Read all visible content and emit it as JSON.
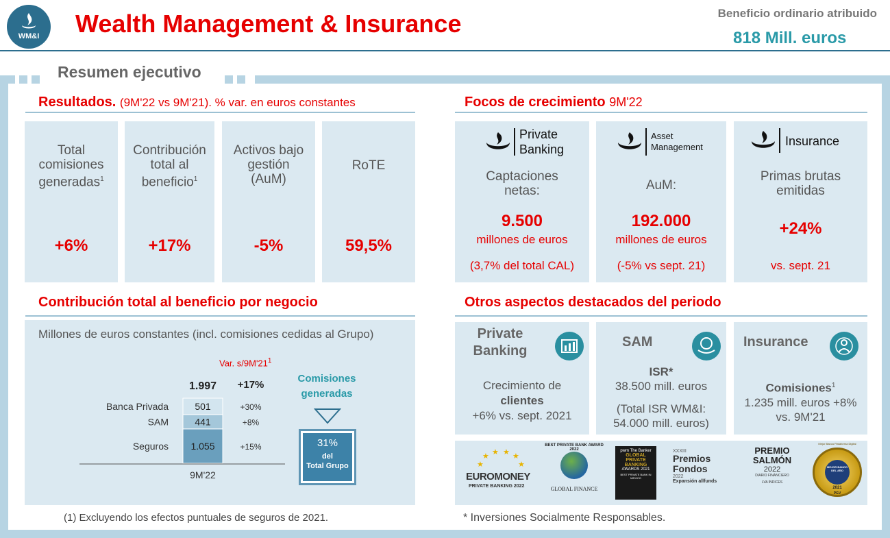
{
  "header": {
    "logo_text": "WM&I",
    "title": "Wealth Management & Insurance",
    "kpi_label": "Beneficio ordinario atribuido",
    "kpi_value": "818 Mill. euros"
  },
  "section_tab": "Resumen ejecutivo",
  "resultados": {
    "title": "Resultados.",
    "subtitle": "(9M'22 vs 9M'21). % var. en euros constantes",
    "metrics": [
      {
        "label_lines": [
          "Total",
          "comisiones",
          "generadas"
        ],
        "sup": "1",
        "value": "+6%"
      },
      {
        "label_lines": [
          "Contribución",
          "total al",
          "beneficio"
        ],
        "sup": "1",
        "value": "+17%"
      },
      {
        "label_lines": [
          "Activos bajo",
          "gestión",
          "(AuM)"
        ],
        "sup": "",
        "value": "-5%"
      },
      {
        "label_lines": [
          "RoTE"
        ],
        "sup": "",
        "value": "59,5%"
      }
    ]
  },
  "focos": {
    "title": "Focos de crecimiento",
    "period": "9M'22",
    "cards": [
      {
        "brand_lines": [
          "Private",
          "Banking"
        ],
        "label_lines": [
          "Captaciones",
          "netas:"
        ],
        "value": "9.500",
        "unit": "millones de euros",
        "note": "(3,7% del total CAL)"
      },
      {
        "brand_lines": [
          "Asset",
          "Management"
        ],
        "label_lines": [
          "AuM:"
        ],
        "value": "192.000",
        "unit": "millones de euros",
        "note": "(-5% vs sept.  21)"
      },
      {
        "brand_lines": [
          "Insurance"
        ],
        "label_lines": [
          "Primas brutas",
          "emitidas"
        ],
        "value": "+24%",
        "unit": "",
        "note": "vs. sept. 21"
      }
    ]
  },
  "contribucion": {
    "title": "Contribución total al beneficio por negocio",
    "subtitle": "Millones de euros constantes (incl. comisiones cedidas al Grupo)",
    "var_header": "Var. s/9M'21",
    "var_sup": "1",
    "total": "1.997",
    "total_var": "+17%",
    "period": "9M'22",
    "commission_label_lines": [
      "Comisiones",
      "generadas"
    ],
    "commission_pct": "31%",
    "commission_desc_lines": [
      "del",
      "Total Grupo"
    ],
    "footnote": "(1) Excluyendo los efectos puntuales de seguros de 2021."
  },
  "chart_data": {
    "type": "bar",
    "stacked": true,
    "categories": [
      "9M'22"
    ],
    "series": [
      {
        "name": "Seguros",
        "values": [
          1055
        ],
        "label": "1.055",
        "var": "+15%",
        "color": "#6a9fbd"
      },
      {
        "name": "SAM",
        "values": [
          441
        ],
        "label": "441",
        "var": "+8%",
        "color": "#a4c7da"
      },
      {
        "name": "Banca Privada",
        "values": [
          501
        ],
        "label": "501",
        "var": "+30%",
        "color": "#d3e5ef"
      }
    ],
    "total": 1997
  },
  "otros": {
    "title": "Otros aspectos destacados del periodo",
    "cards": [
      {
        "heading_lines": [
          "Private",
          "Banking"
        ],
        "icon": "bar-chart-icon",
        "lines": [
          "Crecimiento de",
          "clientes",
          "+6% vs. sept. 2021"
        ],
        "bold_line": 1
      },
      {
        "heading_lines": [
          "SAM"
        ],
        "icon": "globe-hand-icon",
        "lines": [
          "ISR*",
          "38.500 mill. euros",
          "",
          "(Total ISR WM&I:",
          "54.000 mill. euros)"
        ],
        "bold_line": 0
      },
      {
        "heading_lines": [
          "Insurance"
        ],
        "icon": "person-shield-icon",
        "lines": [
          "Comisiones",
          "1.235 mill. euros +8%",
          "vs. 9M'21"
        ],
        "bold_line": 0,
        "sup": "1"
      }
    ],
    "footnote": "* Inversiones  Socialmente  Responsables."
  },
  "awards": {
    "euromoney": {
      "name": "EUROMONEY",
      "sub": "PRIVATE BANKING 2022"
    },
    "best_pb": {
      "ring": "BEST PRIVATE BANK AWARD 2022",
      "brand": "GLOBAL FINANCE"
    },
    "pwm": {
      "brand": "pwm  The Banker",
      "lines": [
        "GLOBAL",
        "PRIVATE",
        "BANKING",
        "AWARDS 2021"
      ],
      "sub": "BEST PRIVATE BANK IN MEXICO"
    },
    "premios_fondos": {
      "top": "XXXIII",
      "lines": [
        "Premios",
        "Fondos"
      ],
      "year": "2022",
      "sponsors": "Expansión  allfunds"
    },
    "premio_salmon": {
      "lines": [
        "PREMIO",
        "SALMÓN"
      ],
      "year": "2022",
      "sub": "DIARIO FINANCIERO",
      "sponsor": "LVA ÍNDICES"
    },
    "gold_badge": {
      "ring": "Mejor Banca Plataforma Digital",
      "center": "MEJOR BANCO DEL AÑO",
      "year": "2021",
      "brand": "PGV"
    }
  },
  "colors": {
    "brand_red": "#e60000",
    "teal": "#2a9aa8",
    "card_bg": "#dbe9f1",
    "frame": "#b7d4e3"
  }
}
